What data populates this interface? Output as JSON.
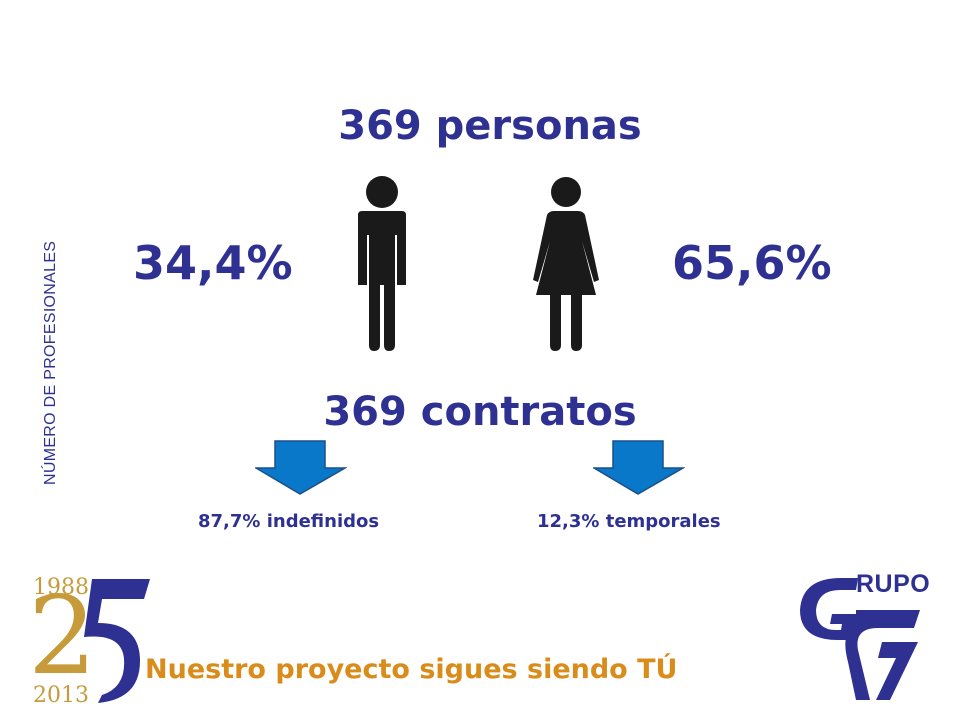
{
  "side_label": "NÚMERO DE PROFESIONALES",
  "headline_personas": "369 personas",
  "male_percent": "34,4%",
  "female_percent": "65,6%",
  "headline_contratos": "369 contratos",
  "indefinidos": "87,7% indefinidos",
  "temporales": "12,3% temporales",
  "tagline": "Nuestro proyecto sigues siendo TÚ",
  "anniversary": {
    "year_start": "1988",
    "year_end": "2013",
    "number_two": "2"
  },
  "logo": {
    "text": "RUPO"
  },
  "colors": {
    "title": "#2e3192",
    "tagline": "#d98c1a",
    "arrow": "#0a78c8",
    "figure": "#1a1a1a"
  },
  "icons": [
    "man-icon",
    "woman-icon",
    "arrow-down-icon",
    "arrow-down-icon"
  ]
}
